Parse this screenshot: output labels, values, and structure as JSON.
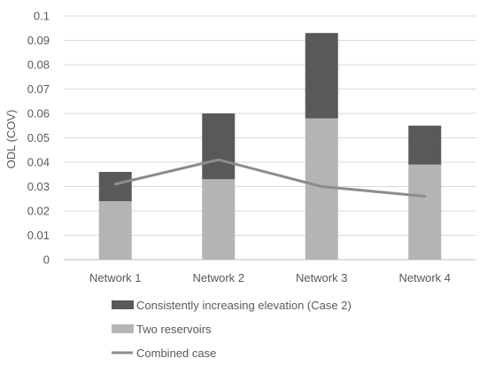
{
  "chart_data": {
    "type": "bar",
    "stacked": true,
    "categories": [
      "Network 1",
      "Network 2",
      "Network 3",
      "Network 4"
    ],
    "series": [
      {
        "name": "Two reservoirs",
        "kind": "bar",
        "color": "#b4b4b4",
        "values": [
          0.024,
          0.033,
          0.058,
          0.039
        ]
      },
      {
        "name": "Consistently increasing elevation (Case 2)",
        "kind": "bar-stacked-top",
        "color": "#595959",
        "top_values": [
          0.036,
          0.06,
          0.093,
          0.055
        ]
      },
      {
        "name": "Combined case",
        "kind": "line",
        "color": "#8c8c8c",
        "values": [
          0.031,
          0.041,
          0.03,
          0.026
        ]
      }
    ],
    "title": "",
    "xlabel": "",
    "ylabel": "ODL (COV)",
    "ylim": [
      0,
      0.1
    ],
    "yticks": [
      "0",
      "0.01",
      "0.02",
      "0.03",
      "0.04",
      "0.05",
      "0.06",
      "0.07",
      "0.08",
      "0.09",
      "0.1"
    ],
    "grid": true,
    "legend_position": "bottom",
    "legend_order": [
      "Consistently increasing elevation (Case 2)",
      "Two reservoirs",
      "Combined case"
    ]
  }
}
